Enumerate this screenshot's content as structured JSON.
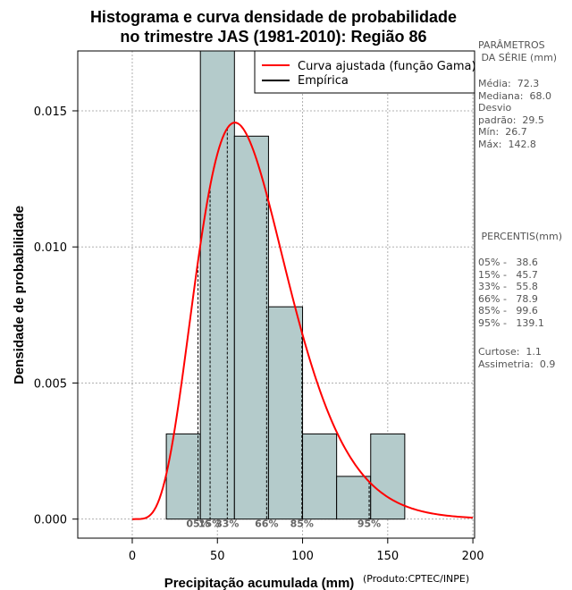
{
  "chart_data": {
    "type": "bar",
    "title_line1": "Histograma e curva densidade de probabilidade",
    "title_line2": "no trimestre JAS (1981-2010): Região 86",
    "xlabel": "Precipitação acumulada (mm)",
    "ylabel": "Densidade de probabilidade",
    "credit": "(Produto:CPTEC/INPE)",
    "xlim": [
      -32,
      201
    ],
    "ylim": [
      -0.0007,
      0.0172
    ],
    "x_ticks": [
      0,
      50,
      100,
      150,
      200
    ],
    "x_tick_labels": [
      "0",
      "50",
      "100",
      "150",
      "200"
    ],
    "y_ticks": [
      0.0,
      0.005,
      0.01,
      0.015
    ],
    "y_tick_labels": [
      "0.000",
      "0.005",
      "0.010",
      "0.015"
    ],
    "grid": true,
    "histogram": {
      "bins": [
        {
          "x0": 20,
          "x1": 40,
          "density": 0.00313
        },
        {
          "x0": 40,
          "x1": 60,
          "density": 0.0172
        },
        {
          "x0": 60,
          "x1": 80,
          "density": 0.01407
        },
        {
          "x0": 80,
          "x1": 100,
          "density": 0.0078
        },
        {
          "x0": 100,
          "x1": 120,
          "density": 0.00313
        },
        {
          "x0": 120,
          "x1": 140,
          "density": 0.00157
        },
        {
          "x0": 140,
          "x1": 160,
          "density": 0.00313
        }
      ],
      "fill_color": "#b4cbcb",
      "edge_color": "#000000"
    },
    "gamma_curve": {
      "name": "Curva ajustada (função Gama)",
      "mean": 72.3,
      "sd": 29.5,
      "x_start": 0,
      "x_end": 200,
      "color": "#ff0000"
    },
    "empirica_name": "Empírica",
    "empirica_color": "#000000",
    "percentile_lines": [
      {
        "label": "05%",
        "value": 38.6
      },
      {
        "label": "15%",
        "value": 45.7
      },
      {
        "label": "33%",
        "value": 55.8
      },
      {
        "label": "66%",
        "value": 78.9
      },
      {
        "label": "85%",
        "value": 99.6
      },
      {
        "label": "95%",
        "value": 139.1
      }
    ],
    "legend_position": "top-right"
  },
  "side_panel": {
    "params_title": "PARÂMETROS\n DA SÉRIE (mm)",
    "params_text": "Média:  72.3\nMediana:  68.0\nDesvio\npadrão:  29.5\nMín:  26.7\nMáx:  142.8",
    "pct_title": " PERCENTIS(mm)",
    "pct_text": "05% -   38.6\n15% -   45.7\n33% -   55.8\n66% -   78.9\n85% -   99.6\n95% -   139.1",
    "stats_text": "Curtose:  1.1\nAssimetria:  0.9"
  }
}
